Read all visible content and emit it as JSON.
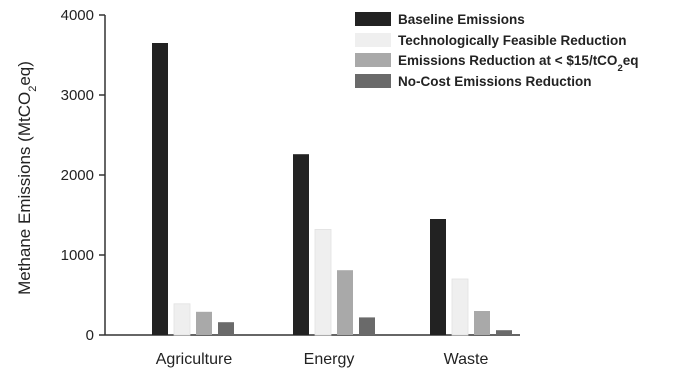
{
  "chart_data": {
    "type": "bar",
    "title": "",
    "xlabel": "",
    "ylabel": "Methane Emissions (MtCO2eq)",
    "ylabel_parts": [
      "Methane Emissions (MtCO",
      "2",
      "eq)"
    ],
    "ylim": [
      0,
      4000
    ],
    "yticks": [
      "0",
      "1000",
      "2000",
      "3000",
      "4000"
    ],
    "categories": [
      "Agriculture",
      "Energy",
      "Waste"
    ],
    "legend_position": "top-right",
    "grid": false,
    "series": [
      {
        "name": "Baseline Emissions",
        "color": "#222222",
        "values": [
          3650,
          2260,
          1450
        ]
      },
      {
        "name": "Technologically Feasible Reduction",
        "color": "#efefef",
        "values": [
          390,
          1320,
          700
        ]
      },
      {
        "name": "Emissions Reduction at < $15/tCO2eq",
        "color": "#a9a9a9",
        "values": [
          290,
          810,
          300
        ]
      },
      {
        "name": "No-Cost Emissions Reduction",
        "color": "#6a6a6a",
        "values": [
          160,
          220,
          60
        ]
      }
    ],
    "legend_parts": {
      "series_2": [
        "Emissions Reduction at < $15/tCO",
        "2",
        "eq"
      ]
    }
  }
}
